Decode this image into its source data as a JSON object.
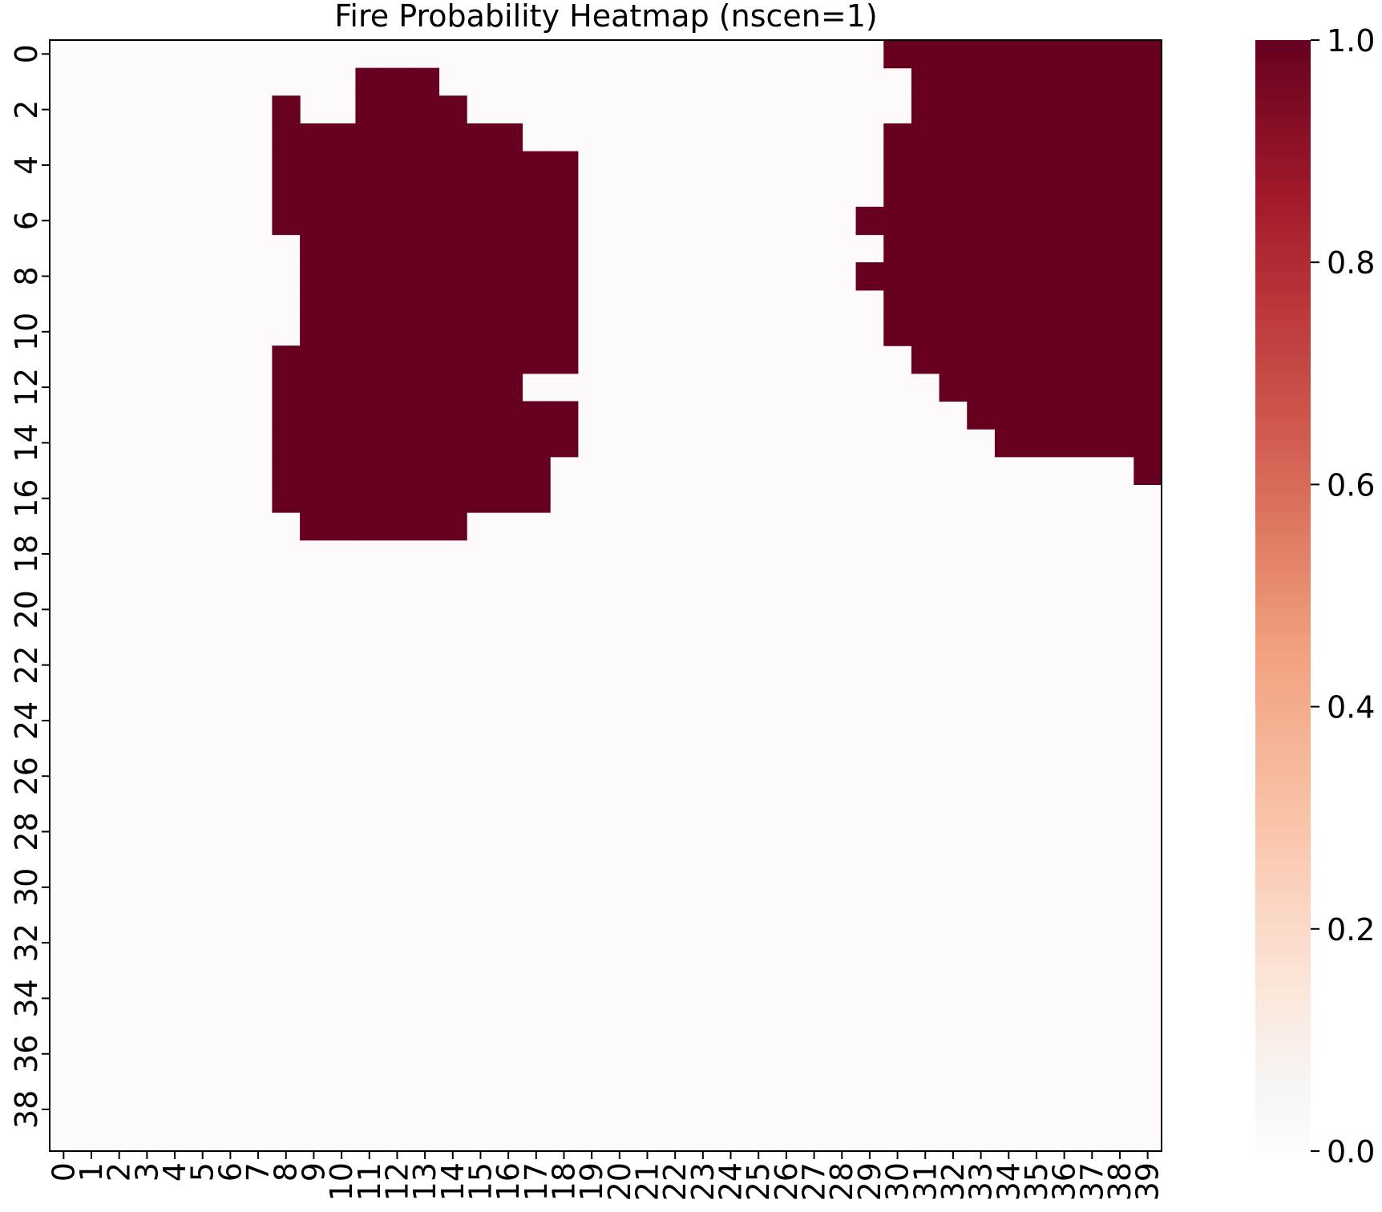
{
  "chart_data": {
    "type": "heatmap",
    "title": "Fire Probability Heatmap (nscen=1)",
    "xlabel": "",
    "ylabel": "",
    "n_cols": 40,
    "n_rows": 40,
    "x_tick_labels": [
      "0",
      "1",
      "2",
      "3",
      "4",
      "5",
      "6",
      "7",
      "8",
      "9",
      "10",
      "11",
      "12",
      "13",
      "14",
      "15",
      "16",
      "17",
      "18",
      "19",
      "20",
      "21",
      "22",
      "23",
      "24",
      "25",
      "26",
      "27",
      "28",
      "29",
      "30",
      "31",
      "32",
      "33",
      "34",
      "35",
      "36",
      "37",
      "38",
      "39"
    ],
    "y_tick_labels": [
      "0",
      "2",
      "4",
      "6",
      "8",
      "10",
      "12",
      "14",
      "16",
      "18",
      "20",
      "22",
      "24",
      "26",
      "28",
      "30",
      "32",
      "34",
      "36",
      "38"
    ],
    "y_tick_rows": [
      0,
      2,
      4,
      6,
      8,
      10,
      12,
      14,
      16,
      18,
      20,
      22,
      24,
      26,
      28,
      30,
      32,
      34,
      36,
      38
    ],
    "value_range": [
      0.0,
      1.0
    ],
    "colormap": "RdBu_r",
    "colors": {
      "high": "#67001f",
      "low": "#fefafc"
    },
    "colorbar": {
      "ticks": [
        0.0,
        0.2,
        0.4,
        0.6,
        0.8,
        1.0
      ],
      "tick_labels": [
        "0.0",
        "0.2",
        "0.4",
        "0.6",
        "0.8",
        "1.0"
      ]
    },
    "burned_cells_by_row": [
      {
        "row": 0,
        "cols": [
          [
            30,
            39
          ]
        ]
      },
      {
        "row": 1,
        "cols": [
          [
            11,
            13
          ],
          [
            31,
            39
          ]
        ]
      },
      {
        "row": 2,
        "cols": [
          [
            8,
            8
          ],
          [
            11,
            14
          ],
          [
            31,
            39
          ]
        ]
      },
      {
        "row": 3,
        "cols": [
          [
            8,
            16
          ],
          [
            30,
            39
          ]
        ]
      },
      {
        "row": 4,
        "cols": [
          [
            8,
            18
          ],
          [
            30,
            39
          ]
        ]
      },
      {
        "row": 5,
        "cols": [
          [
            8,
            18
          ],
          [
            30,
            39
          ]
        ]
      },
      {
        "row": 6,
        "cols": [
          [
            8,
            18
          ],
          [
            29,
            39
          ]
        ]
      },
      {
        "row": 7,
        "cols": [
          [
            9,
            18
          ],
          [
            30,
            39
          ]
        ]
      },
      {
        "row": 8,
        "cols": [
          [
            9,
            18
          ],
          [
            29,
            39
          ]
        ]
      },
      {
        "row": 9,
        "cols": [
          [
            9,
            18
          ],
          [
            30,
            39
          ]
        ]
      },
      {
        "row": 10,
        "cols": [
          [
            9,
            18
          ],
          [
            30,
            39
          ]
        ]
      },
      {
        "row": 11,
        "cols": [
          [
            8,
            18
          ],
          [
            31,
            39
          ]
        ]
      },
      {
        "row": 12,
        "cols": [
          [
            8,
            16
          ],
          [
            32,
            39
          ]
        ]
      },
      {
        "row": 13,
        "cols": [
          [
            8,
            18
          ],
          [
            33,
            39
          ]
        ]
      },
      {
        "row": 14,
        "cols": [
          [
            8,
            18
          ],
          [
            34,
            39
          ]
        ]
      },
      {
        "row": 15,
        "cols": [
          [
            8,
            17
          ],
          [
            39,
            39
          ]
        ]
      },
      {
        "row": 16,
        "cols": [
          [
            8,
            17
          ]
        ]
      },
      {
        "row": 17,
        "cols": [
          [
            9,
            14
          ]
        ]
      }
    ]
  }
}
